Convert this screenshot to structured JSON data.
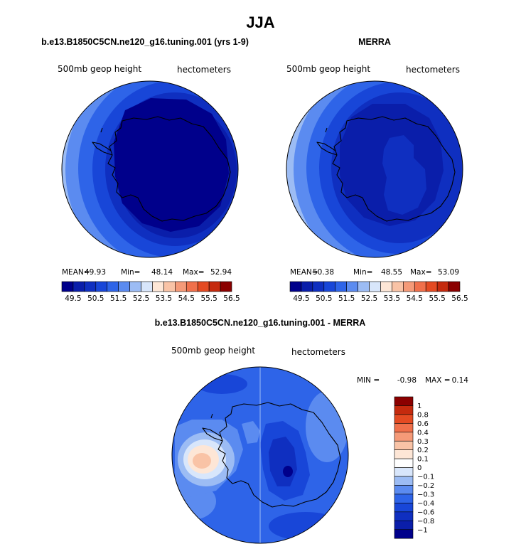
{
  "title": "JJA",
  "colors": {
    "abs": [
      "#00008b",
      "#0a1eaa",
      "#0f2fc0",
      "#1846d8",
      "#2e64e8",
      "#5b8bf0",
      "#9cbcf4",
      "#d8e6fb",
      "#fde6d6",
      "#f9c3a6",
      "#f59a78",
      "#f0704b",
      "#e44a22",
      "#c52a0e",
      "#8b0000"
    ],
    "diff": [
      "#00008b",
      "#0a1eaa",
      "#0f2fc0",
      "#1846d8",
      "#2e64e8",
      "#5b8bf0",
      "#9cbcf4",
      "#d8e6fb",
      "#ffffff",
      "#fde6d6",
      "#f9c3a6",
      "#f59a78",
      "#f0704b",
      "#e44a22",
      "#c52a0e",
      "#8b0000"
    ]
  },
  "chart_data": [
    {
      "type": "heatmap",
      "title": "b.e13.B1850C5CN.ne120_g16.tuning.001 (yrs 1-9)",
      "variable": "500mb geop height",
      "units": "hectometers",
      "stats": {
        "mean_label": "MEAN=",
        "mean": "49.93",
        "min_label": "Min=",
        "min": "48.14",
        "max_label": "Max=",
        "max": "52.94"
      },
      "colorbar_ticks": [
        "49.5",
        "50.5",
        "51.5",
        "52.5",
        "53.5",
        "54.5",
        "55.5",
        "56.5"
      ]
    },
    {
      "type": "heatmap",
      "title": "MERRA",
      "variable": "500mb geop height",
      "units": "hectometers",
      "stats": {
        "mean_label": "MEAN=",
        "mean": "50.38",
        "min_label": "Min=",
        "min": "48.55",
        "max_label": "Max=",
        "max": "53.09"
      },
      "colorbar_ticks": [
        "49.5",
        "50.5",
        "51.5",
        "52.5",
        "53.5",
        "54.5",
        "55.5",
        "56.5"
      ]
    },
    {
      "type": "heatmap",
      "title": "b.e13.B1850C5CN.ne120_g16.tuning.001 - MERRA",
      "variable": "500mb geop height",
      "units": "hectometers",
      "stats": {
        "min_label": "MIN =",
        "min": "-0.98",
        "max_label": "MAX =",
        "max": "0.14"
      },
      "colorbar_ticks": [
        "1",
        "0.8",
        "0.6",
        "0.4",
        "0.3",
        "0.2",
        "0.1",
        "0",
        "−0.1",
        "−0.2",
        "−0.3",
        "−0.4",
        "−0.6",
        "−0.8",
        "−1"
      ]
    }
  ]
}
